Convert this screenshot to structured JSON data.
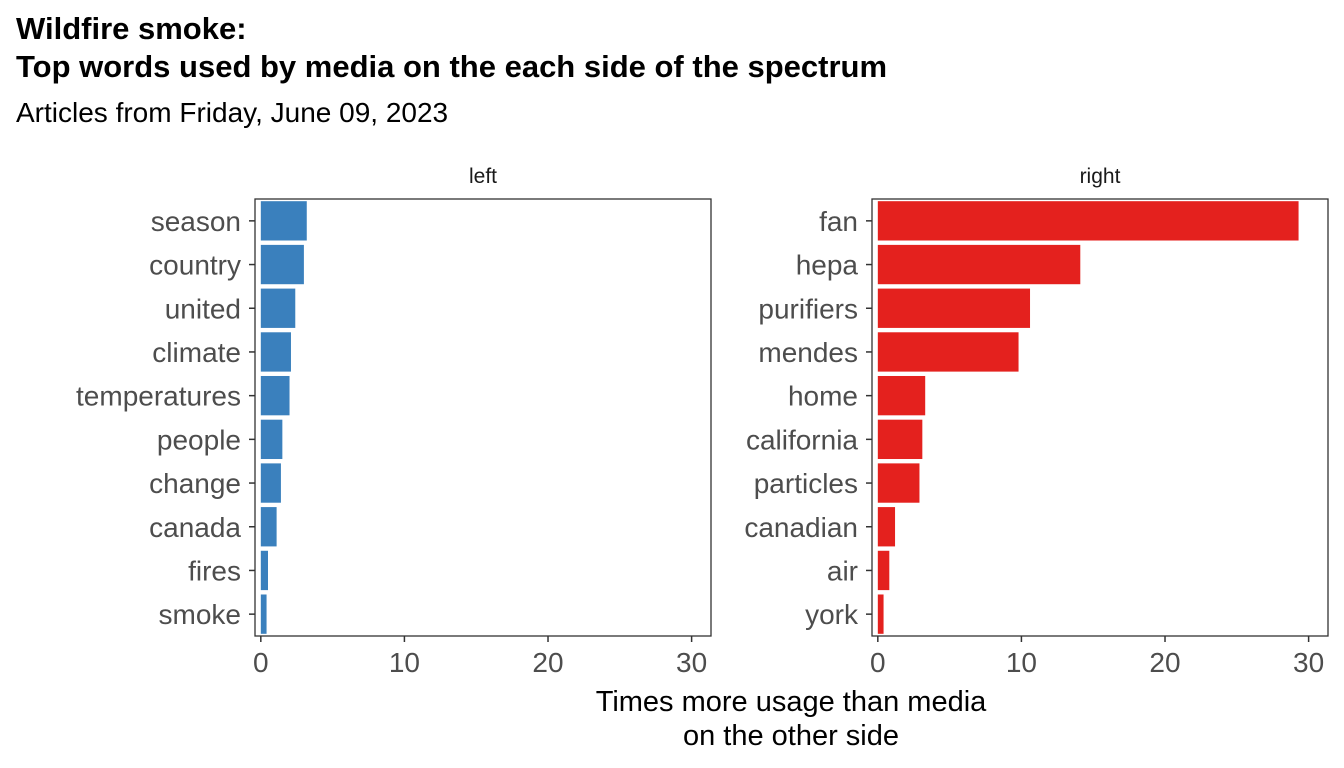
{
  "chart_data": {
    "type": "bar",
    "orientation": "horizontal",
    "title_lines": [
      "Wildfire smoke:",
      "Top words used by media on the each side of the spectrum"
    ],
    "subtitle": "Articles from Friday, June 09, 2023",
    "xlabel_lines": [
      "Times more usage than media",
      "on the other side"
    ],
    "xlim": [
      0,
      30
    ],
    "xticks": [
      "0",
      "10",
      "20",
      "30"
    ],
    "grid": false,
    "panels": [
      {
        "name": "left",
        "color": "#3a80bd",
        "categories": [
          "season",
          "country",
          "united",
          "climate",
          "temperatures",
          "people",
          "change",
          "canada",
          "fires",
          "smoke"
        ],
        "values": [
          3.2,
          3.0,
          2.4,
          2.1,
          2.0,
          1.5,
          1.4,
          1.1,
          0.5,
          0.4
        ]
      },
      {
        "name": "right",
        "color": "#e4211e",
        "categories": [
          "fan",
          "hepa",
          "purifiers",
          "mendes",
          "home",
          "california",
          "particles",
          "canadian",
          "air",
          "york"
        ],
        "values": [
          29.3,
          14.1,
          10.6,
          9.8,
          3.3,
          3.1,
          2.9,
          1.2,
          0.8,
          0.4
        ]
      }
    ]
  }
}
